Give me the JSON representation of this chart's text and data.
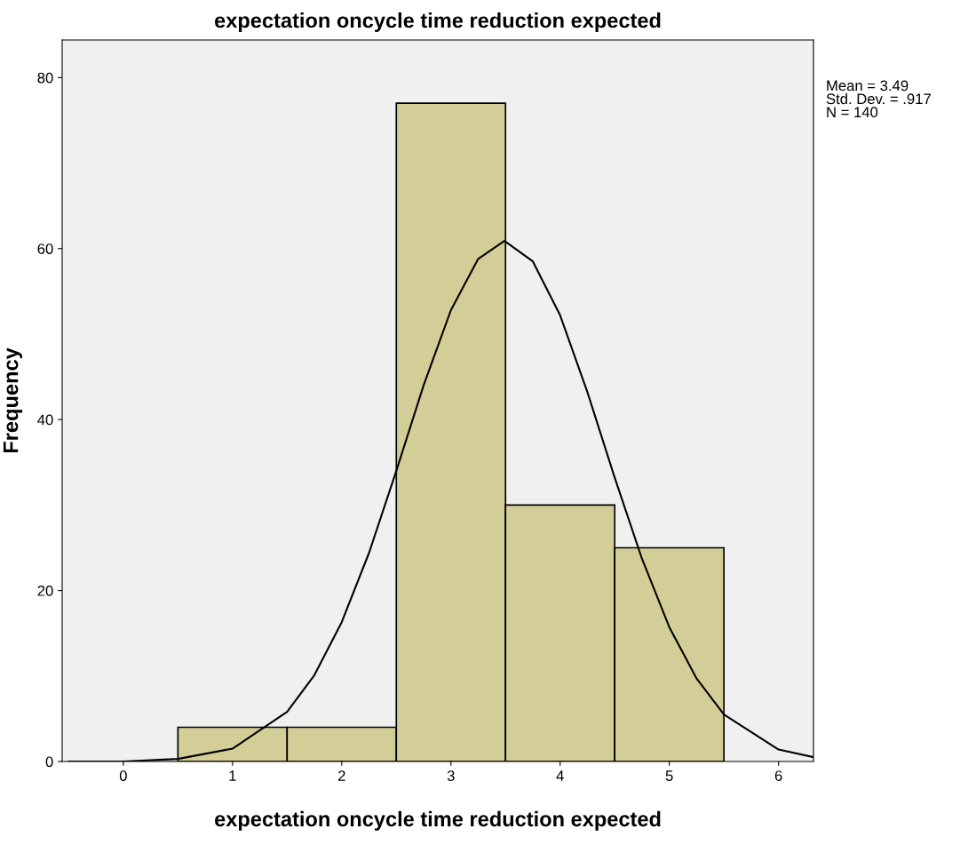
{
  "chart_data": {
    "type": "histogram",
    "title": "expectation oncycle time reduction expected",
    "xlabel": "expectation oncycle time reduction expected",
    "ylabel": "Frequency",
    "series": [
      {
        "bins": [
          0.5,
          1.5,
          2.5,
          3.5,
          4.5,
          5.5
        ],
        "values": [
          4,
          4,
          77,
          30,
          25
        ],
        "color": "#d3ce97"
      },
      {
        "type": "line",
        "color": "#000000",
        "x": [
          -0.5,
          0,
          0.5,
          1,
          1.5,
          1.75,
          2,
          2.25,
          2.5,
          2.75,
          3,
          3.25,
          3.49,
          3.75,
          4,
          4.25,
          4.5,
          4.75,
          5,
          5.25,
          5.5,
          6,
          6.32
        ],
        "values": [
          0.0,
          0.0,
          0.3,
          1.5,
          5.8,
          10.1,
          16.3,
          24.4,
          34.0,
          44.0,
          52.8,
          58.8,
          60.9,
          58.5,
          52.2,
          43.2,
          33.2,
          23.7,
          15.7,
          9.7,
          5.5,
          1.4,
          0.5
        ]
      }
    ],
    "xlim": [
      -0.56,
      6.32
    ],
    "ylim": [
      0,
      84.4
    ],
    "xticks": [
      0,
      1,
      2,
      3,
      4,
      5,
      6
    ],
    "yticks": [
      0,
      20,
      40,
      60,
      80
    ],
    "grid": false,
    "legend": false,
    "annotations": [
      "Mean = 3.49\nStd. Dev. = .917\nN = 140"
    ]
  }
}
